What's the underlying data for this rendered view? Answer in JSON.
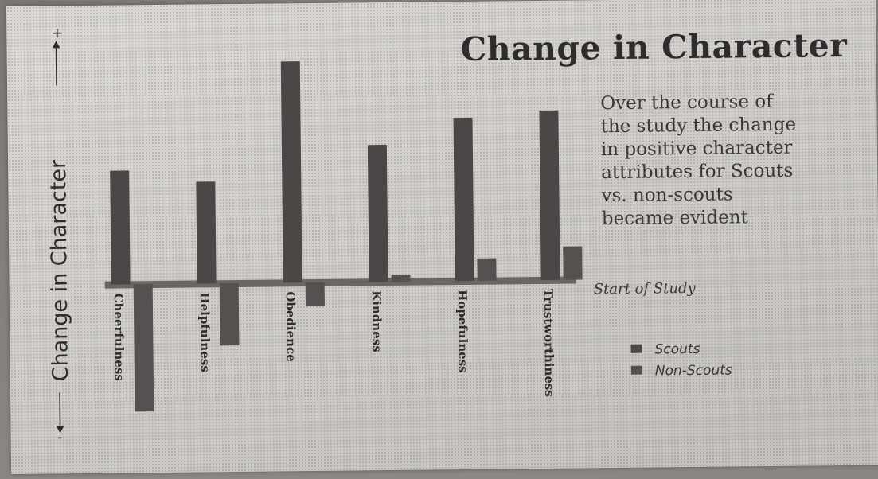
{
  "chart_data": {
    "type": "bar",
    "title": "Change in Character",
    "description_lines": [
      "Over the course of",
      "the study the change",
      "in positive character",
      "attributes for Scouts",
      "vs. non-scouts",
      "became evident"
    ],
    "ylabel": "Change in Character",
    "ylabel_minus": "-",
    "ylabel_plus": "+",
    "baseline_label": "Start of Study",
    "categories": [
      "Cheerfulness",
      "Helpfulness",
      "Obedience",
      "Kindness",
      "Hopefulness",
      "Trustworthiness"
    ],
    "series": [
      {
        "name": "Scouts",
        "color": "#4b4747",
        "values": [
          143,
          128,
          278,
          172,
          205,
          213
        ]
      },
      {
        "name": "Non-Scouts",
        "color": "#555150",
        "values": [
          -160,
          -78,
          -30,
          8,
          28,
          42
        ]
      }
    ],
    "ylim": [
      -170,
      290
    ],
    "legend_position": "right",
    "grid": false
  }
}
